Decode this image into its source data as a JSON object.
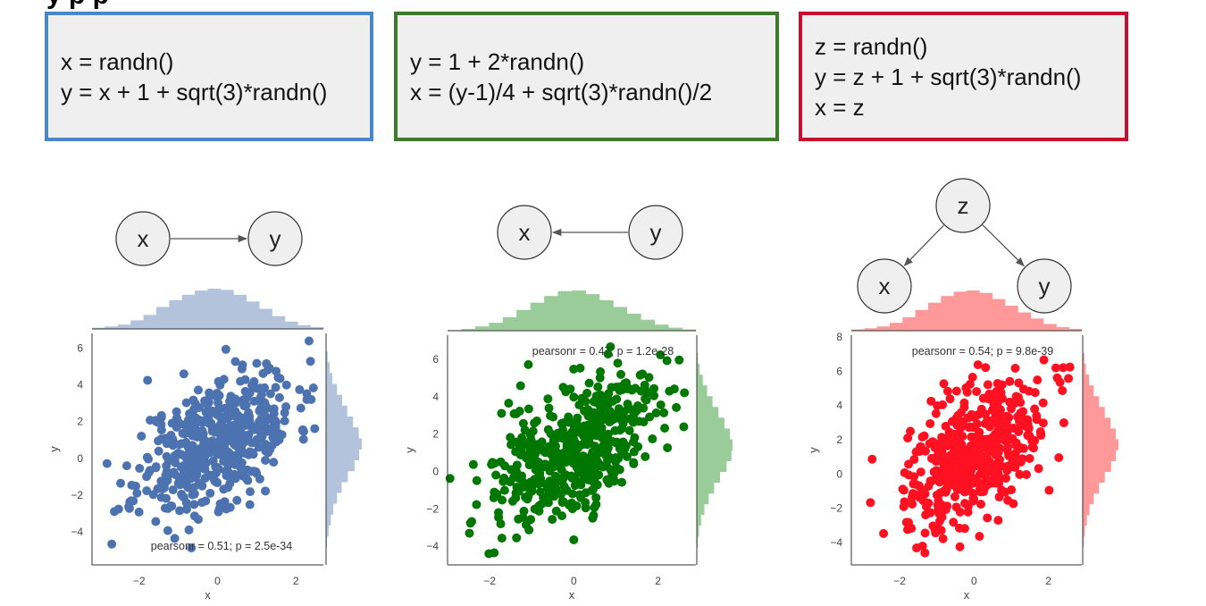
{
  "colors": {
    "blue": "#4c72b0",
    "blue_hist": "#b4c3dc",
    "green": "#007700",
    "green_hist": "#99cc99",
    "red": "#ff1122",
    "red_hist": "#ff9999",
    "node_fill": "#efefef",
    "node_stroke": "#333333",
    "axis": "#333333"
  },
  "title_partial": "y        p                    p",
  "panels": [
    {
      "id": "xy",
      "code_lines": [
        "x = randn()",
        "y = x + 1 + sqrt(3)*randn()"
      ],
      "border": "#4a86c8",
      "color_key": "blue",
      "nodes": [
        {
          "label": "x"
        },
        {
          "label": "y"
        }
      ],
      "edges": [
        "x→y"
      ],
      "stat_text": "pearsonr = 0.51; p = 2.5e-34",
      "xlabel": "x",
      "ylabel": "y",
      "chart_data": {
        "type": "scatter",
        "xlim": [
          -3.2,
          2.7
        ],
        "ylim": [
          -5.8,
          6.8
        ],
        "xticks": [
          -2,
          0,
          2
        ],
        "yticks": [
          -4,
          -2,
          0,
          2,
          4,
          6
        ],
        "x_hist": [
          2,
          4,
          7,
          14,
          23,
          36,
          47,
          56,
          63,
          66,
          64,
          56,
          45,
          33,
          21,
          12,
          6,
          3
        ],
        "y_hist": [
          2,
          5,
          9,
          14,
          21,
          30,
          42,
          55,
          64,
          69,
          63,
          52,
          41,
          31,
          21,
          12,
          7,
          3
        ]
      }
    },
    {
      "id": "yx",
      "code_lines": [
        "y = 1 + 2*randn()",
        "x = (y-1)/4 + sqrt(3)*randn()/2"
      ],
      "border": "#3f7a2b",
      "color_key": "green",
      "nodes": [
        {
          "label": "x"
        },
        {
          "label": "y"
        }
      ],
      "edges": [
        "y→x"
      ],
      "stat_text": "pearsonr = 0.47; p = 1.2e-28",
      "xlabel": "x",
      "ylabel": "y",
      "chart_data": {
        "type": "scatter",
        "xlim": [
          -3.0,
          2.9
        ],
        "ylim": [
          -5.0,
          7.3
        ],
        "xticks": [
          -2,
          0,
          2
        ],
        "yticks": [
          -4,
          -2,
          0,
          2,
          4,
          6
        ],
        "x_hist": [
          1,
          3,
          7,
          13,
          22,
          34,
          46,
          57,
          65,
          66,
          60,
          50,
          39,
          28,
          18,
          10,
          5,
          2
        ],
        "y_hist": [
          2,
          4,
          8,
          14,
          22,
          32,
          43,
          55,
          64,
          66,
          61,
          51,
          40,
          29,
          19,
          11,
          5,
          2
        ]
      }
    },
    {
      "id": "zxy",
      "code_lines": [
        "z = randn()",
        "y = z + 1 + sqrt(3)*randn()",
        "x = z"
      ],
      "border": "#c8102e",
      "color_key": "red",
      "nodes": [
        {
          "label": "z"
        },
        {
          "label": "x"
        },
        {
          "label": "y"
        }
      ],
      "edges": [
        "z→x",
        "z→y"
      ],
      "stat_text": "pearsonr = 0.54; p = 9.8e-39",
      "xlabel": "x",
      "ylabel": "y",
      "chart_data": {
        "type": "scatter",
        "xlim": [
          -3.3,
          2.9
        ],
        "ylim": [
          -5.3,
          8.1
        ],
        "xticks": [
          -2,
          0,
          2
        ],
        "yticks": [
          -4,
          -2,
          0,
          2,
          4,
          6,
          8
        ],
        "x_hist": [
          2,
          4,
          7,
          13,
          22,
          34,
          46,
          57,
          64,
          66,
          62,
          52,
          41,
          30,
          20,
          11,
          6,
          3
        ],
        "y_hist": [
          2,
          4,
          8,
          13,
          21,
          31,
          42,
          54,
          63,
          68,
          63,
          53,
          42,
          31,
          21,
          12,
          6,
          3
        ]
      }
    }
  ]
}
